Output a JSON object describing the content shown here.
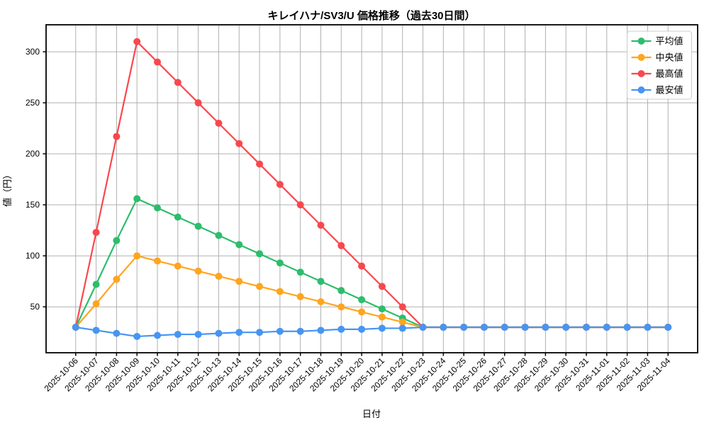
{
  "chart_data": {
    "type": "line",
    "title": "キレイハナ/SV3/U 価格推移（過去30日間）",
    "xlabel": "日付",
    "ylabel": "値（円）",
    "categories": [
      "2025-10-06",
      "2025-10-07",
      "2025-10-08",
      "2025-10-09",
      "2025-10-10",
      "2025-10-11",
      "2025-10-12",
      "2025-10-13",
      "2025-10-14",
      "2025-10-15",
      "2025-10-16",
      "2025-10-17",
      "2025-10-18",
      "2025-10-19",
      "2025-10-20",
      "2025-10-21",
      "2025-10-22",
      "2025-10-23",
      "2025-10-24",
      "2025-10-25",
      "2025-10-26",
      "2025-10-27",
      "2025-10-28",
      "2025-10-29",
      "2025-10-30",
      "2025-10-31",
      "2025-11-01",
      "2025-11-02",
      "2025-11-03",
      "2025-11-04"
    ],
    "series": [
      {
        "id": "avg",
        "name": "平均値",
        "color": "#2dbd6d",
        "values": [
          30,
          72,
          115,
          156,
          147,
          138,
          129,
          120,
          111,
          102,
          93,
          84,
          75,
          66,
          57,
          48,
          39,
          30,
          30,
          30,
          30,
          30,
          30,
          30,
          30,
          30,
          30,
          30,
          30,
          30
        ]
      },
      {
        "id": "median",
        "name": "中央値",
        "color": "#ffa51e",
        "values": [
          30,
          53,
          77,
          100,
          95,
          90,
          85,
          80,
          75,
          70,
          65,
          60,
          55,
          50,
          45,
          40,
          35,
          30,
          30,
          30,
          30,
          30,
          30,
          30,
          30,
          30,
          30,
          30,
          30,
          30
        ]
      },
      {
        "id": "max",
        "name": "最高値",
        "color": "#f8484e",
        "values": [
          30,
          123,
          217,
          310,
          290,
          270,
          250,
          230,
          210,
          190,
          170,
          150,
          130,
          110,
          90,
          70,
          50,
          30,
          30,
          30,
          30,
          30,
          30,
          30,
          30,
          30,
          30,
          30,
          30,
          30
        ]
      },
      {
        "id": "min",
        "name": "最安値",
        "color": "#4795f2",
        "values": [
          30,
          27,
          24,
          21,
          22,
          23,
          23,
          24,
          25,
          25,
          26,
          26,
          27,
          28,
          28,
          29,
          29,
          30,
          30,
          30,
          30,
          30,
          30,
          30,
          30,
          30,
          30,
          30,
          30,
          30
        ]
      }
    ],
    "yticks": [
      50,
      100,
      150,
      200,
      250,
      300
    ],
    "ylim": [
      5,
      326.5
    ],
    "grid": true,
    "grid_color": "#b0b0b0",
    "spine_color": "#000000",
    "legend_position": "upper right",
    "legend_border_color": "#cccccc"
  }
}
